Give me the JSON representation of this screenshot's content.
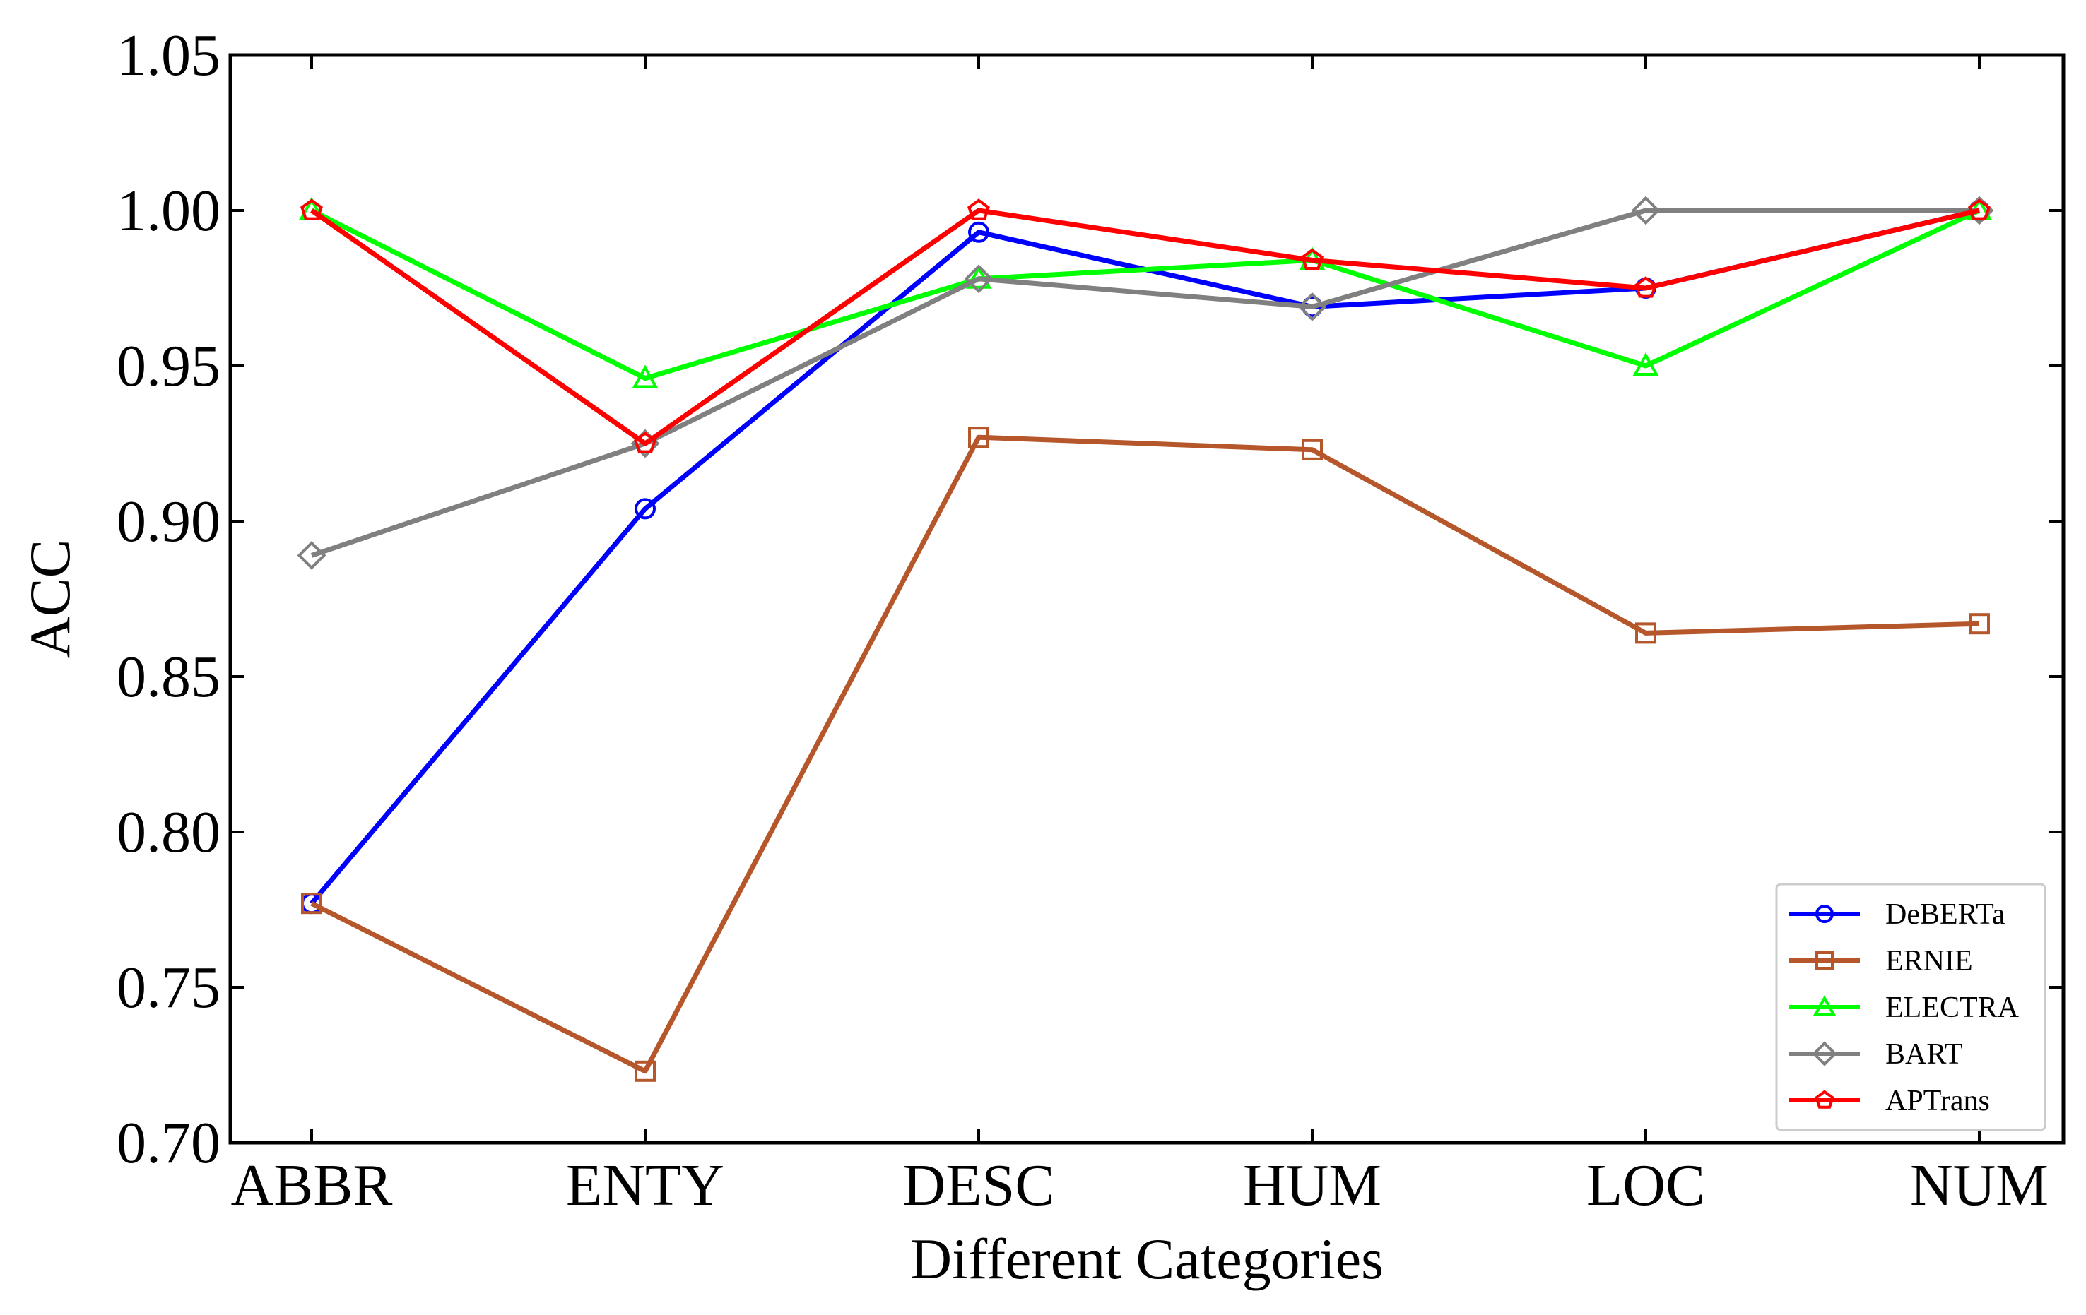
{
  "chart_data": {
    "type": "line",
    "title": "",
    "xlabel": "Different Categories",
    "ylabel": "ACC",
    "categories": [
      "ABBR",
      "ENTY",
      "DESC",
      "HUM",
      "LOC",
      "NUM"
    ],
    "ylim": [
      0.7,
      1.05
    ],
    "yticks": [
      "0.70",
      "0.75",
      "0.80",
      "0.85",
      "0.90",
      "0.95",
      "1.00",
      "1.05"
    ],
    "grid": false,
    "legend_position": "bottom-right",
    "series": [
      {
        "name": "DeBERTa",
        "color": "#0000ff",
        "marker": "circle",
        "values": [
          0.777,
          0.904,
          0.993,
          0.969,
          0.975,
          1.0
        ]
      },
      {
        "name": "ERNIE",
        "color": "#b5562b",
        "marker": "square",
        "values": [
          0.777,
          0.723,
          0.927,
          0.923,
          0.864,
          0.867
        ]
      },
      {
        "name": "ELECTRA",
        "color": "#00ff00",
        "marker": "triangle",
        "values": [
          1.0,
          0.946,
          0.978,
          0.984,
          0.95,
          1.0
        ]
      },
      {
        "name": "BART",
        "color": "#808080",
        "marker": "diamond",
        "values": [
          0.889,
          0.925,
          0.978,
          0.969,
          1.0,
          1.0
        ]
      },
      {
        "name": "APTrans",
        "color": "#ff0000",
        "marker": "pentagon",
        "values": [
          1.0,
          0.925,
          1.0,
          0.984,
          0.975,
          1.0
        ]
      }
    ]
  }
}
